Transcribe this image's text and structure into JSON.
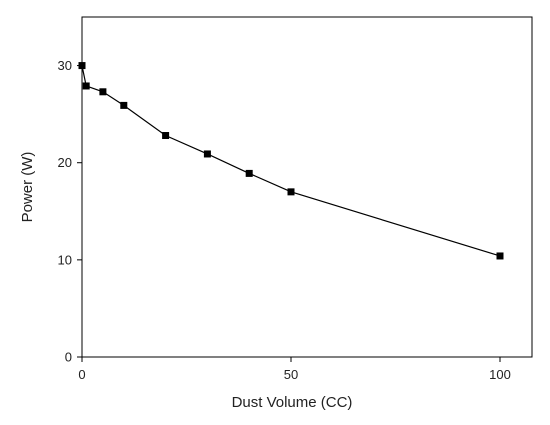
{
  "chart_data": {
    "type": "line",
    "xlabel": "Dust Volume (CC)",
    "ylabel": "Power (W)",
    "xlim": [
      0,
      100
    ],
    "ylim": [
      0,
      35
    ],
    "xticks": [
      0,
      50,
      100
    ],
    "yticks": [
      0,
      10,
      20,
      30
    ],
    "grid": false,
    "series": [
      {
        "x": [
          0,
          1,
          5,
          10,
          20,
          30,
          40,
          50,
          100
        ],
        "y": [
          30.0,
          27.9,
          27.3,
          25.9,
          22.8,
          20.9,
          18.9,
          17.0,
          10.4
        ],
        "marker": "square",
        "color": "#000000"
      }
    ]
  }
}
